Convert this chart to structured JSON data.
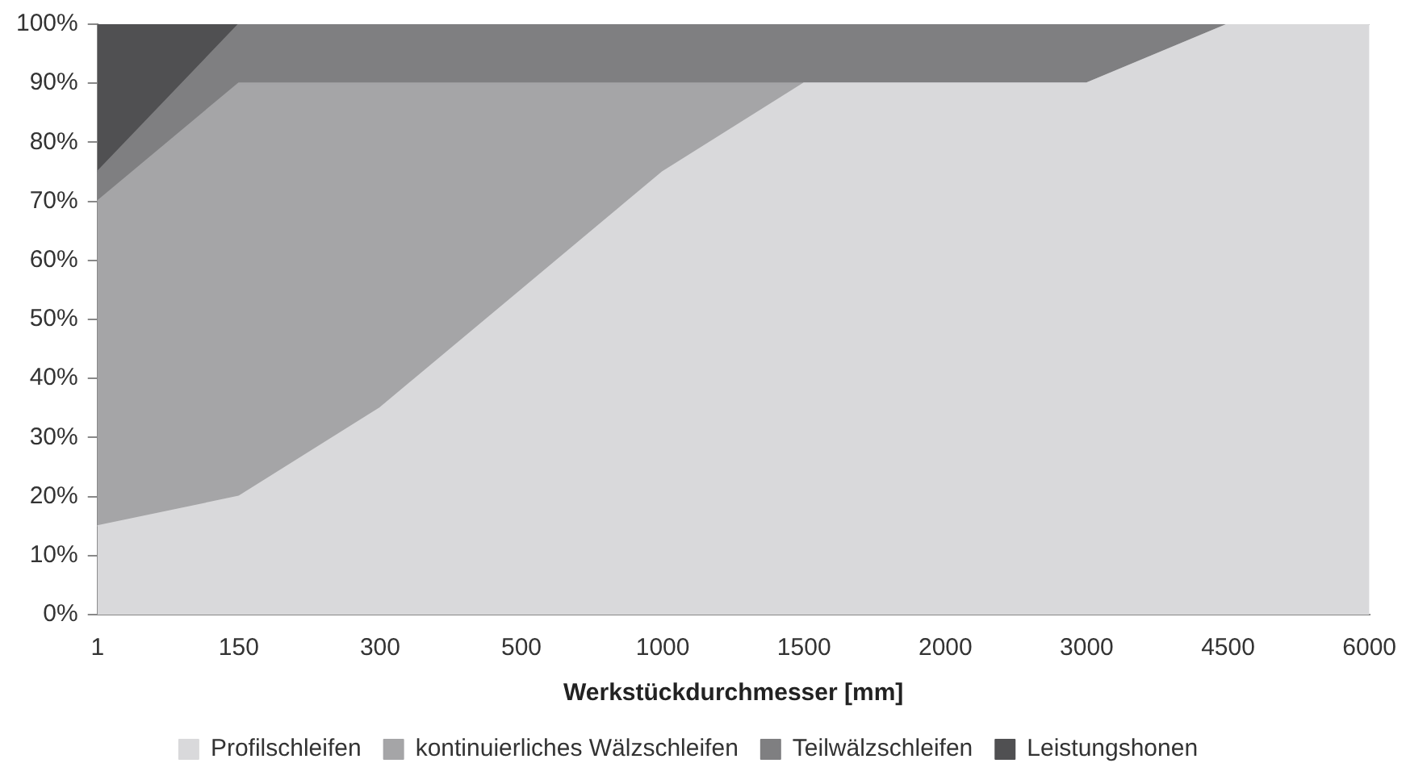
{
  "chart_data": {
    "type": "area",
    "stacked": true,
    "xlabel": "Werkstückdurchmesser [mm]",
    "categories": [
      "1",
      "150",
      "300",
      "500",
      "1000",
      "1500",
      "2000",
      "3000",
      "4500",
      "6000"
    ],
    "ylim": [
      0,
      100
    ],
    "yticks": [
      {
        "value": 0,
        "label": "0%"
      },
      {
        "value": 10,
        "label": "10%"
      },
      {
        "value": 20,
        "label": "20%"
      },
      {
        "value": 30,
        "label": "30%"
      },
      {
        "value": 40,
        "label": "40%"
      },
      {
        "value": 50,
        "label": "50%"
      },
      {
        "value": 60,
        "label": "60%"
      },
      {
        "value": 70,
        "label": "70%"
      },
      {
        "value": 80,
        "label": "80%"
      },
      {
        "value": 90,
        "label": "90%"
      },
      {
        "value": 100,
        "label": "100%"
      }
    ],
    "grid": false,
    "legend": "bottom",
    "series": [
      {
        "name": "Profilschleifen",
        "color": "#d9d9db",
        "values": [
          15,
          20,
          35,
          55,
          75,
          90,
          90,
          90,
          100,
          100
        ]
      },
      {
        "name": "kontinuierliches Wälzschleifen",
        "color": "#a5a5a7",
        "values": [
          55,
          70,
          55,
          35,
          15,
          0,
          0,
          0,
          0,
          0
        ]
      },
      {
        "name": "Teilwälzschleifen",
        "color": "#7f7f81",
        "values": [
          5,
          10,
          10,
          10,
          10,
          10,
          10,
          10,
          0,
          0
        ]
      },
      {
        "name": "Leistungshonen",
        "color": "#505052",
        "values": [
          25,
          0,
          0,
          0,
          0,
          0,
          0,
          0,
          0,
          0
        ]
      }
    ]
  }
}
